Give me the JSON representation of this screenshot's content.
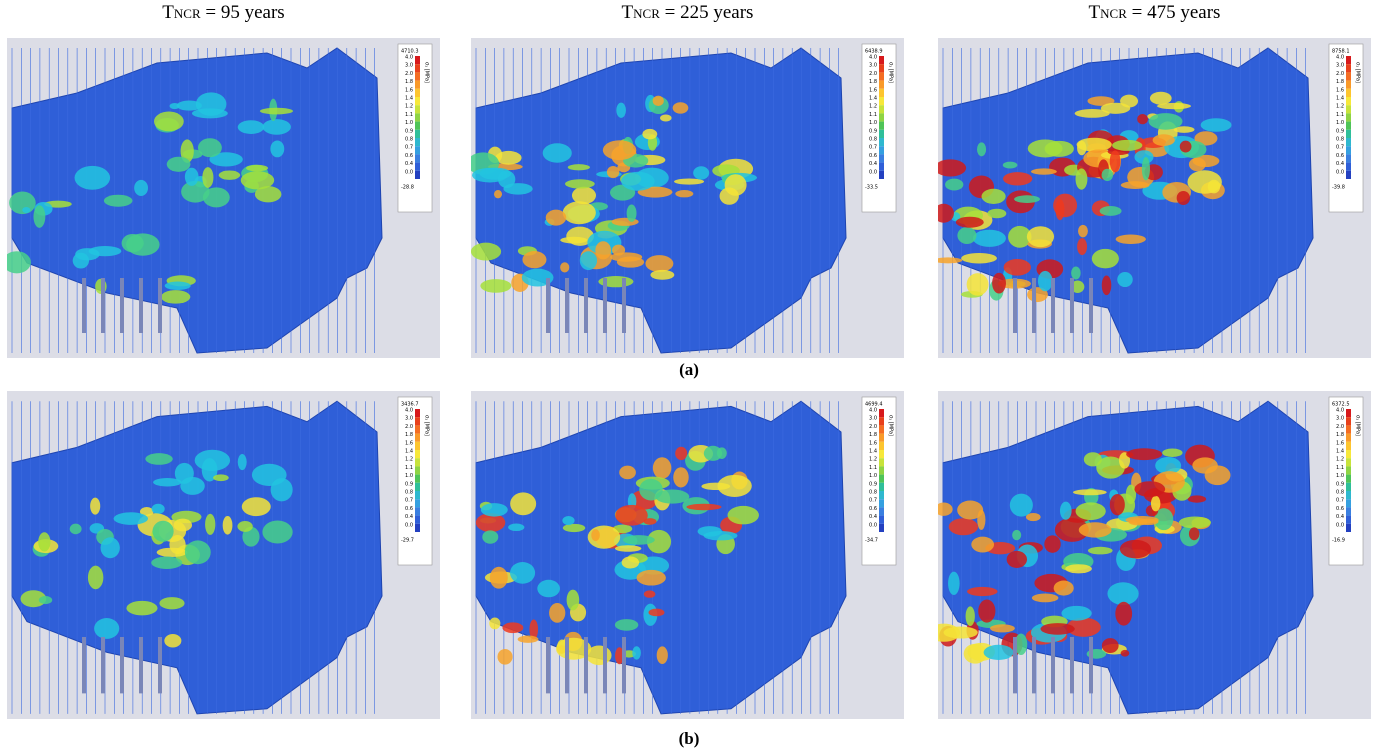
{
  "headers": [
    {
      "symbol": "T",
      "subscript": "NCR",
      "text": " = 95 years"
    },
    {
      "symbol": "T",
      "subscript": "NCR",
      "text": " = 225 years"
    },
    {
      "symbol": "T",
      "subscript": "NCR",
      "text": " = 475 years"
    }
  ],
  "legend_unit": "σ₁ [MPa]",
  "legend_scale": [
    "4.0",
    "3.0",
    "2.0",
    "1.8",
    "1.6",
    "1.4",
    "1.2",
    "1.1",
    "1.0",
    "0.9",
    "0.8",
    "0.7",
    "0.6",
    "0.4",
    "0.0"
  ],
  "rows": [
    {
      "label": "(a)",
      "panels": [
        {
          "max": "4710.3",
          "min": "-28.8"
        },
        {
          "max": "6438.9",
          "min": "-33.5"
        },
        {
          "max": "8758.1",
          "min": "-39.8"
        }
      ]
    },
    {
      "label": "(b)",
      "panels": [
        {
          "max": "3436.7",
          "min": "-29.7"
        },
        {
          "max": "4699.4",
          "min": "-34.7"
        },
        {
          "max": "6372.5",
          "min": "-16.9"
        }
      ]
    }
  ]
}
